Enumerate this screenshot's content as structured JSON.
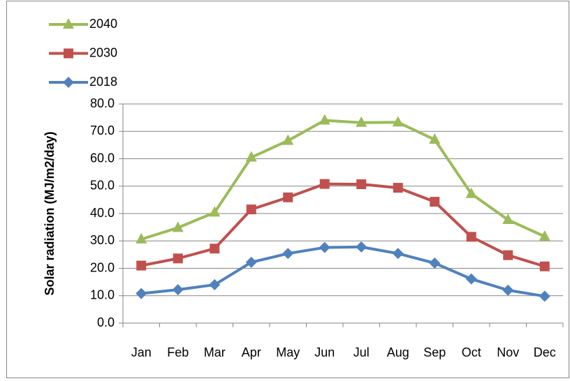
{
  "chart_data": {
    "type": "line",
    "y_label": "Solar radiation (MJ/m2/day)",
    "categories": [
      "Jan",
      "Feb",
      "Mar",
      "Apr",
      "May",
      "Jun",
      "Jul",
      "Aug",
      "Sep",
      "Oct",
      "Nov",
      "Dec"
    ],
    "series": [
      {
        "name": "2018",
        "color": "#4f81bd",
        "marker": "diamond",
        "values": [
          10.8,
          12.2,
          14.0,
          22.2,
          25.4,
          27.6,
          27.8,
          25.4,
          21.9,
          16.1,
          12.0,
          9.8
        ]
      },
      {
        "name": "2030",
        "color": "#c0504d",
        "marker": "square",
        "values": [
          21.0,
          23.6,
          27.2,
          41.5,
          45.9,
          50.8,
          50.7,
          49.4,
          44.3,
          31.5,
          24.8,
          20.7
        ]
      },
      {
        "name": "2040",
        "color": "#9bbb59",
        "marker": "triangle",
        "values": [
          30.6,
          34.8,
          40.4,
          60.5,
          66.6,
          74.0,
          73.2,
          73.3,
          67.0,
          47.2,
          37.7,
          31.6
        ]
      }
    ],
    "ylim": [
      0,
      80
    ],
    "yticks": [
      {
        "value": 0,
        "label": "0.0"
      },
      {
        "value": 10,
        "label": "10.0"
      },
      {
        "value": 20,
        "label": "20.0"
      },
      {
        "value": 30,
        "label": "30.0"
      },
      {
        "value": 40,
        "label": "40.0"
      },
      {
        "value": 50,
        "label": "50.0"
      },
      {
        "value": 60,
        "label": "60.0"
      },
      {
        "value": 70,
        "label": "70.0"
      },
      {
        "value": 80,
        "label": "80.0"
      }
    ],
    "grid": true,
    "legend": "top-left"
  }
}
